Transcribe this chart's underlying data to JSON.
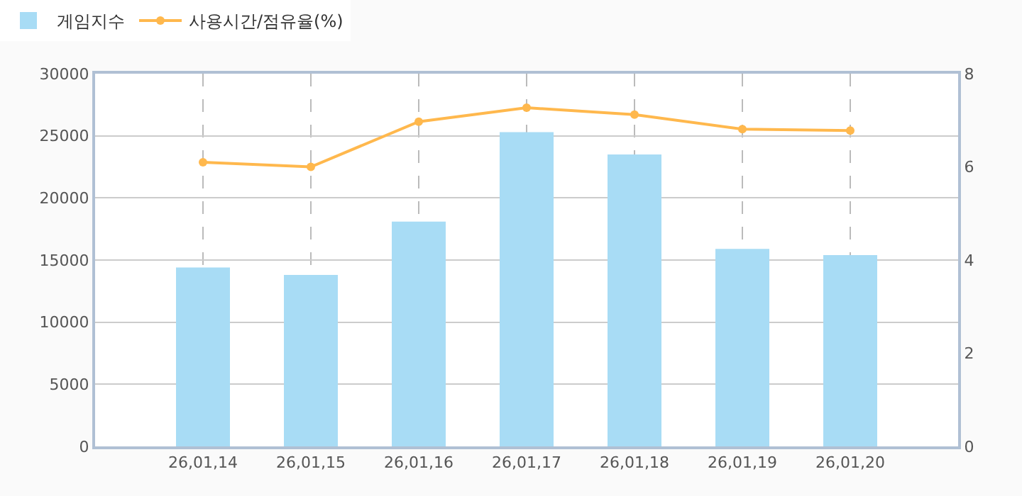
{
  "chart_data": {
    "type": "bar",
    "categories": [
      "26,01,14",
      "26,01,15",
      "26,01,16",
      "26,01,17",
      "26,01,18",
      "26,01,19",
      "26,01,20"
    ],
    "series": [
      {
        "name": "게임지수",
        "color": "#a8dcf5",
        "values": [
          14400,
          13800,
          18100,
          25300,
          23500,
          15900,
          15400
        ]
      },
      {
        "name": "사용시간/점유율(%)",
        "type": "line",
        "axis": "y2",
        "color": "#ffb84d",
        "marker": "circle",
        "values": [
          6.1,
          6.0,
          6.97,
          7.27,
          7.12,
          6.81,
          6.78
        ]
      }
    ],
    "ylim": [
      0,
      30000
    ],
    "yticks": [
      0,
      5000,
      10000,
      15000,
      20000,
      25000,
      30000
    ],
    "y2lim": [
      0,
      8
    ],
    "y2ticks": [
      0,
      2,
      4,
      6,
      8
    ],
    "grid": true,
    "legend": "top left"
  }
}
